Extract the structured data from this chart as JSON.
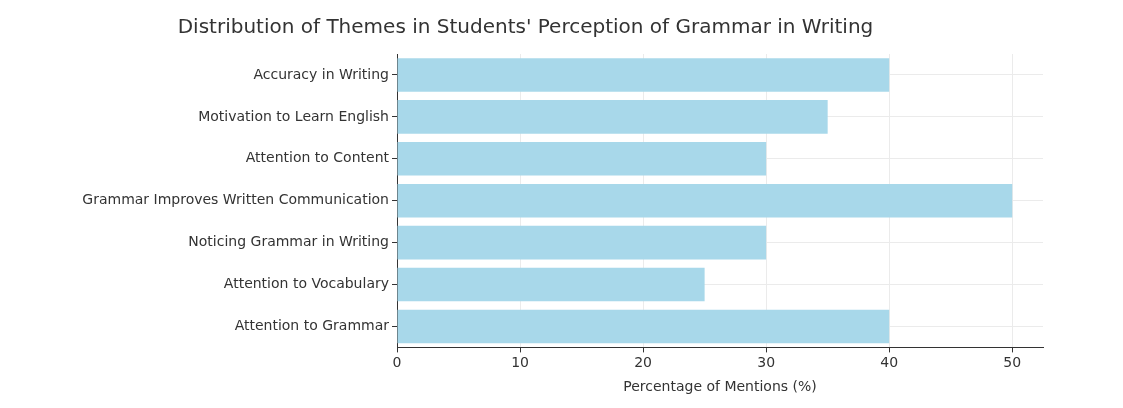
{
  "chart_data": {
    "type": "bar",
    "orientation": "horizontal",
    "title": "Distribution of Themes in Students' Perception of Grammar in Writing",
    "xlabel": "Percentage of Mentions (%)",
    "categories": [
      "Accuracy in Writing",
      "Motivation to Learn English",
      "Attention to Content",
      "Grammar Improves Written Communication",
      "Noticing Grammar in Writing",
      "Attention to Vocabulary",
      "Attention to Grammar"
    ],
    "values": [
      40,
      35,
      30,
      50,
      30,
      25,
      40
    ],
    "color": "#a8d8ea",
    "xlim": [
      0,
      52.5
    ],
    "xticks": [
      0,
      10,
      20,
      30,
      40,
      50
    ],
    "grid": true
  }
}
